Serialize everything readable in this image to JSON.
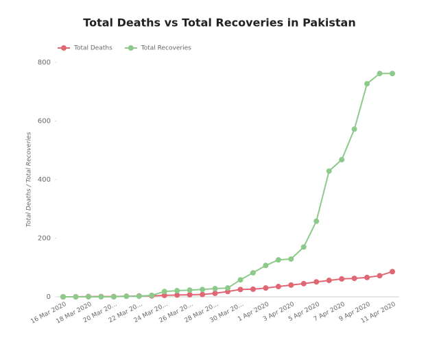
{
  "chart_data": {
    "type": "line",
    "title": "Total Deaths vs Total Recoveries in Pakistan",
    "y_label": "Total Deaths / Total Recoveries",
    "categories": [
      "16 Mar 2020",
      null,
      "18 Mar 2020",
      null,
      "20 Mar 20...",
      null,
      "22 Mar 20...",
      null,
      "24 Mar 20...",
      null,
      "26 Mar 20...",
      null,
      "28 Mar 20...",
      null,
      "30 Mar 20...",
      null,
      "1 Apr 2020",
      null,
      "3 Apr 2020",
      null,
      "5 Apr 2020",
      null,
      "7 Apr 2020",
      null,
      "9 Apr 2020",
      null,
      "11 Apr 2020"
    ],
    "series": [
      {
        "name": "Total Deaths",
        "color": "#e06673",
        "values": [
          0,
          0,
          1,
          1,
          1,
          2,
          3,
          3,
          5,
          6,
          7,
          8,
          12,
          18,
          25,
          26,
          30,
          35,
          40,
          45,
          51,
          56,
          61,
          63,
          66,
          72,
          86
        ]
      },
      {
        "name": "Total Recoveries",
        "color": "#8dc98a",
        "values": [
          0,
          0,
          0,
          0,
          0,
          2,
          2,
          5,
          18,
          21,
          23,
          25,
          28,
          30,
          58,
          82,
          107,
          126,
          129,
          170,
          258,
          429,
          468,
          572,
          727,
          762,
          762
        ]
      }
    ],
    "ylim": [
      0,
      800
    ],
    "yticks": [
      0,
      200,
      400,
      600,
      800
    ],
    "grid": false,
    "legend": "top-left"
  }
}
